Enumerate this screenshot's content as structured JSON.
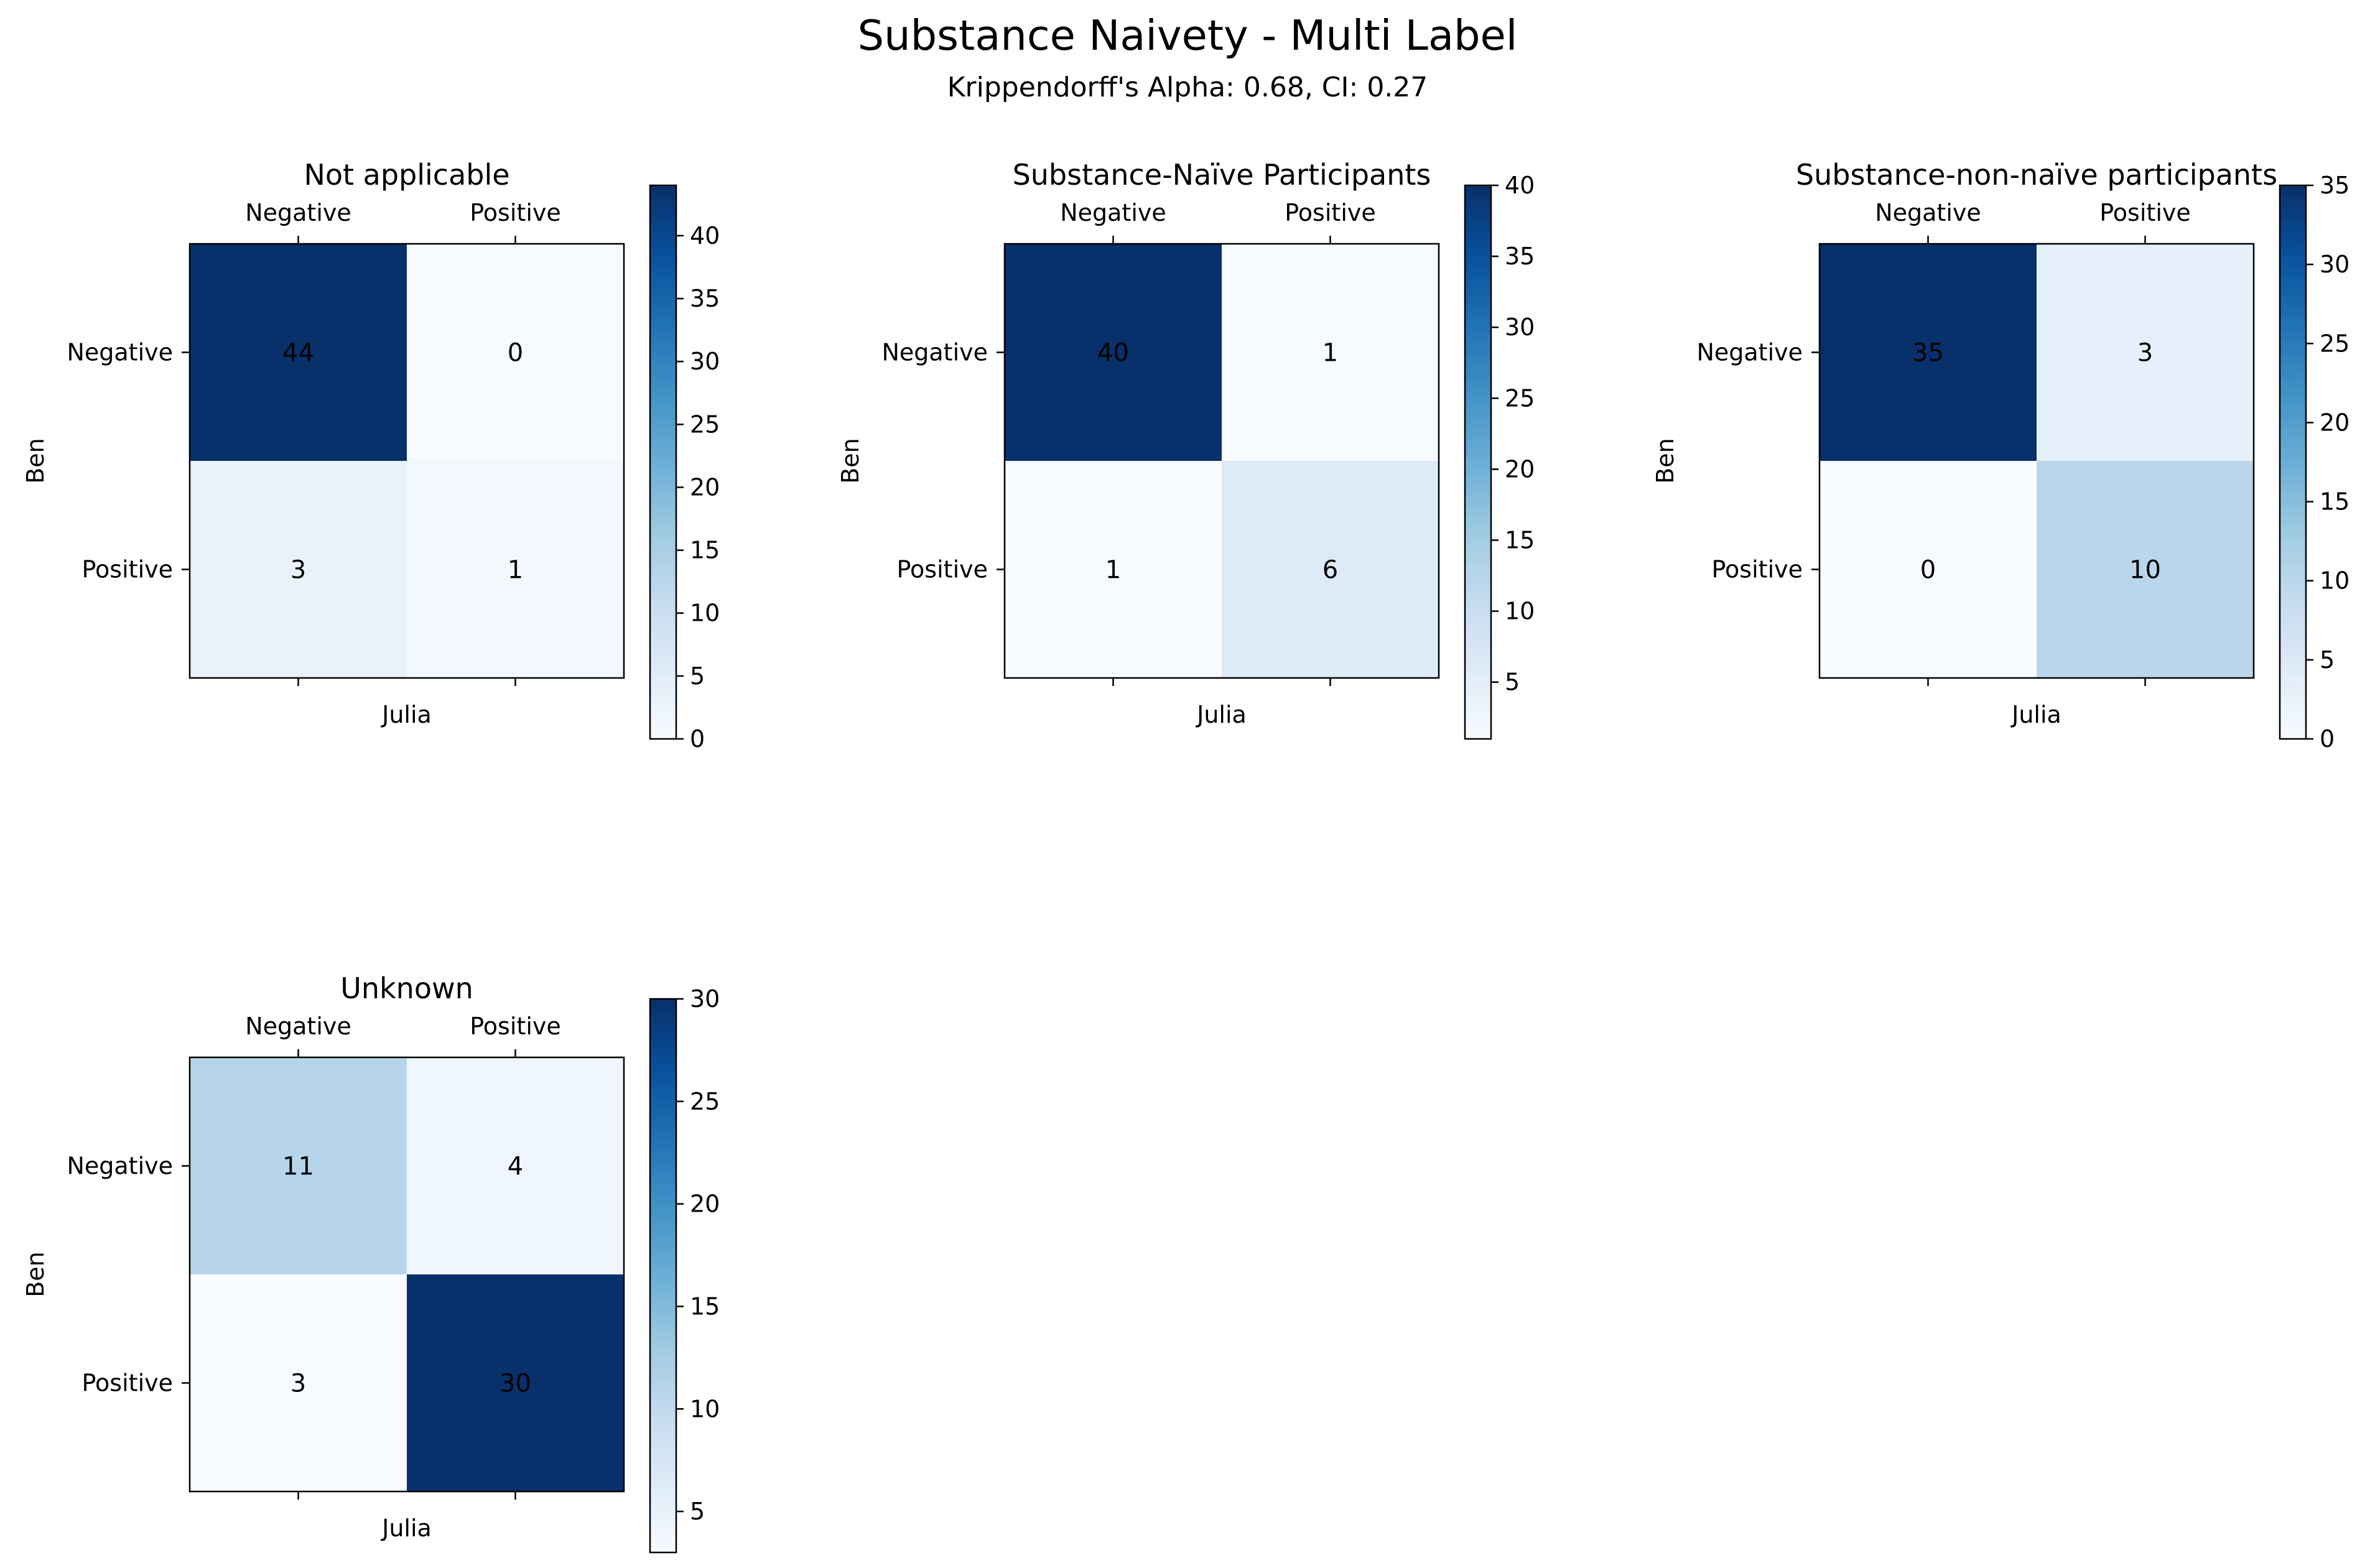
{
  "figure": {
    "title": "Substance Naivety - Multi Label",
    "subtitle": "Krippendorff's Alpha: 0.68, CI: 0.27"
  },
  "chart_data": [
    {
      "type": "heatmap",
      "title": "Not applicable",
      "xlabel": "Julia",
      "ylabel": "Ben",
      "x_categories": [
        "Negative",
        "Positive"
      ],
      "y_categories": [
        "Negative",
        "Positive"
      ],
      "values": [
        [
          44,
          0
        ],
        [
          3,
          1
        ]
      ],
      "colorbar": {
        "min": 0,
        "max": 44,
        "ticks": [
          0,
          5,
          10,
          15,
          20,
          25,
          30,
          35,
          40
        ]
      }
    },
    {
      "type": "heatmap",
      "title": "Substance-Naïve Participants",
      "xlabel": "Julia",
      "ylabel": "Ben",
      "x_categories": [
        "Negative",
        "Positive"
      ],
      "y_categories": [
        "Negative",
        "Positive"
      ],
      "values": [
        [
          40,
          1
        ],
        [
          1,
          6
        ]
      ],
      "colorbar": {
        "min": 1,
        "max": 40,
        "ticks": [
          5,
          10,
          15,
          20,
          25,
          30,
          35,
          40
        ]
      }
    },
    {
      "type": "heatmap",
      "title": "Substance-non-naïve participants",
      "xlabel": "Julia",
      "ylabel": "Ben",
      "x_categories": [
        "Negative",
        "Positive"
      ],
      "y_categories": [
        "Negative",
        "Positive"
      ],
      "values": [
        [
          35,
          3
        ],
        [
          0,
          10
        ]
      ],
      "colorbar": {
        "min": 0,
        "max": 35,
        "ticks": [
          0,
          5,
          10,
          15,
          20,
          25,
          30,
          35
        ]
      }
    },
    {
      "type": "heatmap",
      "title": "Unknown",
      "xlabel": "Julia",
      "ylabel": "Ben",
      "x_categories": [
        "Negative",
        "Positive"
      ],
      "y_categories": [
        "Negative",
        "Positive"
      ],
      "values": [
        [
          11,
          4
        ],
        [
          3,
          30
        ]
      ],
      "colorbar": {
        "min": 3,
        "max": 30,
        "ticks": [
          5,
          10,
          15,
          20,
          25,
          30
        ]
      }
    }
  ],
  "colormap": "Blues"
}
